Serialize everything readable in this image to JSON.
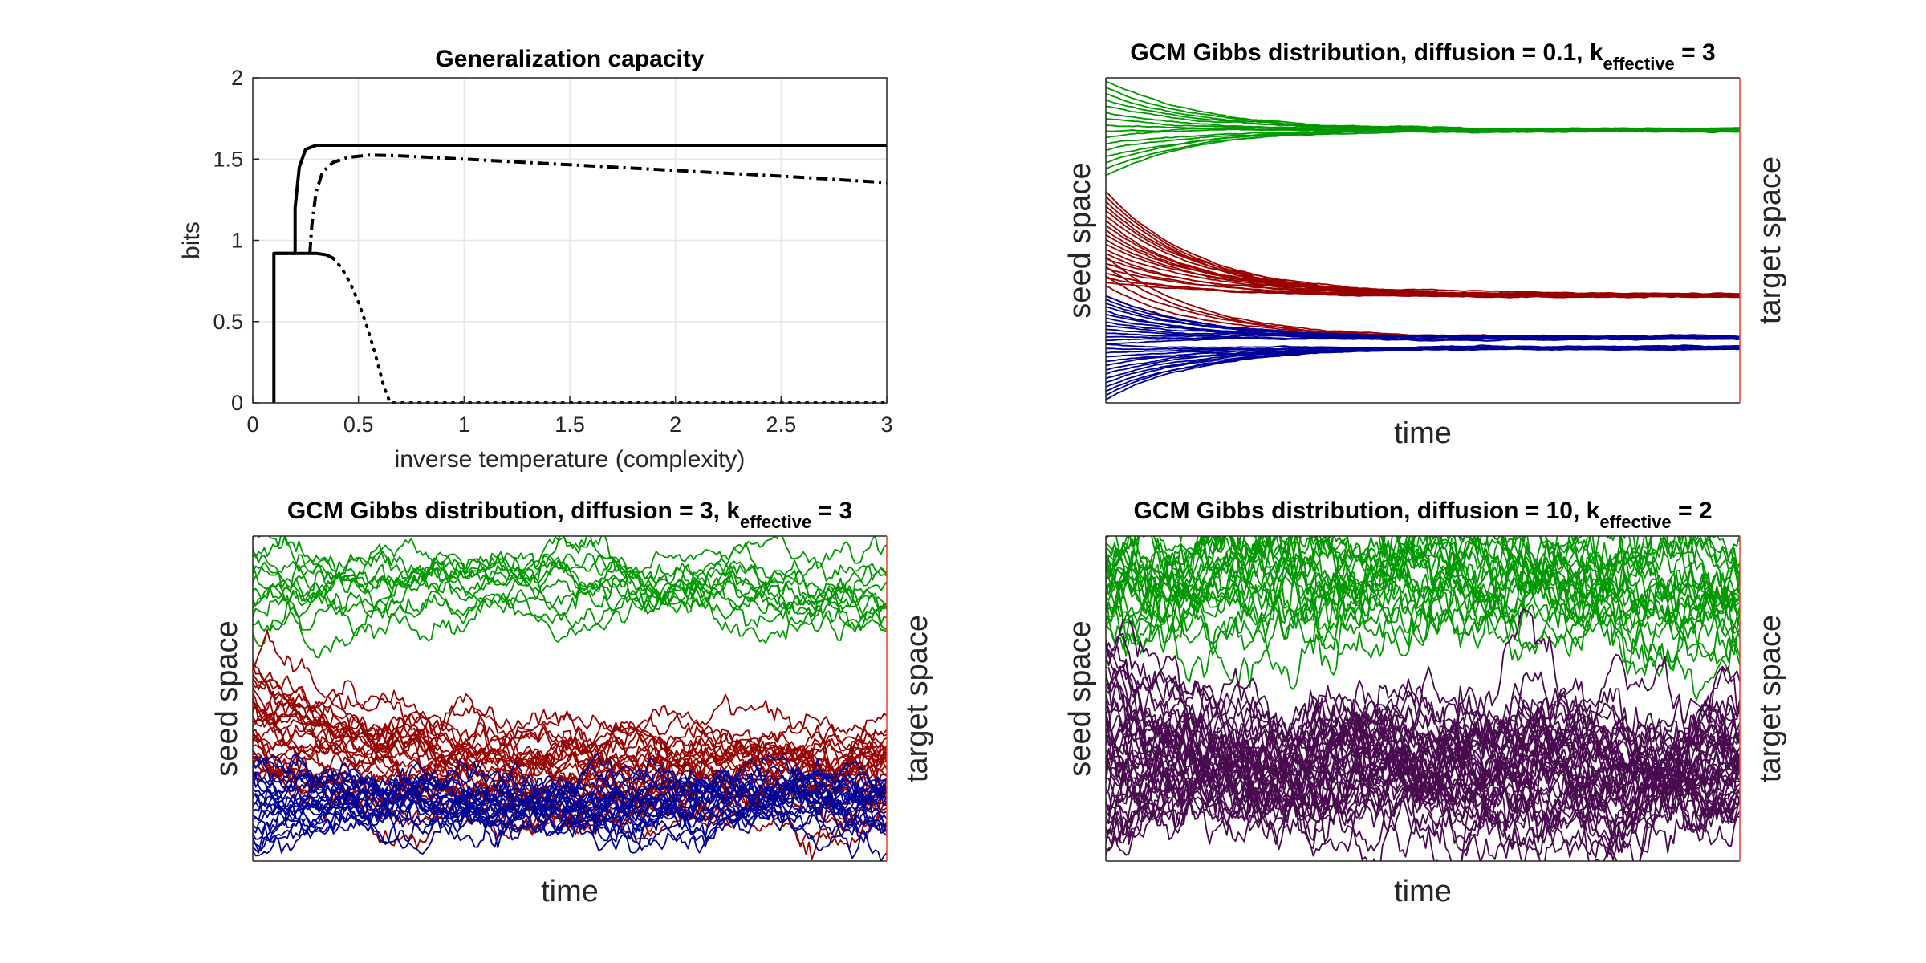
{
  "chart_data": [
    {
      "type": "line",
      "title": "Generalization capacity",
      "xlabel": "inverse temperature (complexity)",
      "ylabel": "bits",
      "xlim": [
        0,
        3
      ],
      "ylim": [
        0,
        2
      ],
      "xticks": [
        "0",
        "0.5",
        "1",
        "1.5",
        "2",
        "2.5",
        "3"
      ],
      "yticks": [
        "0",
        "0.5",
        "1",
        "1.5",
        "2"
      ],
      "grid": true,
      "series": [
        {
          "style": "solid",
          "x": [
            0.1,
            0.1,
            0.2,
            0.2,
            0.22,
            0.25,
            0.3,
            0.5,
            1,
            2,
            3
          ],
          "y": [
            0,
            0.92,
            0.92,
            1.2,
            1.45,
            1.56,
            1.585,
            1.585,
            1.585,
            1.585,
            1.585
          ]
        },
        {
          "style": "dashdot",
          "x": [
            0.27,
            0.28,
            0.3,
            0.33,
            0.38,
            0.45,
            0.55,
            0.7,
            1,
            1.5,
            2,
            2.5,
            3
          ],
          "y": [
            0.92,
            1.1,
            1.3,
            1.42,
            1.48,
            1.51,
            1.525,
            1.52,
            1.5,
            1.465,
            1.43,
            1.395,
            1.355
          ]
        },
        {
          "style": "solid",
          "x": [
            0.1,
            0.12,
            0.2,
            0.3,
            0.35,
            0.38
          ],
          "y": [
            0.92,
            0.92,
            0.92,
            0.92,
            0.91,
            0.89
          ]
        },
        {
          "style": "dotted",
          "x": [
            0.38,
            0.42,
            0.46,
            0.5,
            0.54,
            0.58,
            0.62,
            0.65,
            1,
            2,
            3
          ],
          "y": [
            0.89,
            0.83,
            0.74,
            0.62,
            0.47,
            0.3,
            0.1,
            0.0,
            0.0,
            0.0,
            0.0
          ]
        }
      ]
    },
    {
      "type": "line",
      "title_main": "GCM Gibbs distribution, diffusion = 0.1, k",
      "title_sub": "effective",
      "title_end": " = 3",
      "xlabel": "time",
      "ylabel": "seed space",
      "ylabel_right": "target space",
      "diffusion": 0.1,
      "k_effective": 3,
      "clusters": [
        {
          "color": "#009900",
          "n": 16,
          "target": 0.84,
          "start_range": [
            0.7,
            0.99
          ]
        },
        {
          "color": "#990000",
          "n": 20,
          "target": 0.33,
          "start_range": [
            0.37,
            0.65
          ]
        },
        {
          "color": "#990000",
          "n": 5,
          "target": 0.2,
          "start_range": [
            0.33,
            0.45
          ]
        },
        {
          "color": "#000099",
          "n": 14,
          "target": 0.2,
          "start_range": [
            0.18,
            0.33
          ]
        },
        {
          "color": "#000099",
          "n": 14,
          "target": 0.17,
          "start_range": [
            0.01,
            0.18
          ]
        }
      ]
    },
    {
      "type": "line",
      "title_main": "GCM Gibbs distribution, diffusion = 3, k",
      "title_sub": "effective",
      "title_end": " = 3",
      "xlabel": "time",
      "ylabel": "seed space",
      "ylabel_right": "target space",
      "diffusion": 3,
      "k_effective": 3,
      "clusters": [
        {
          "color": "#009900",
          "n": 12,
          "target": 0.84,
          "start_range": [
            0.7,
            0.99
          ]
        },
        {
          "color": "#990000",
          "n": 16,
          "target": 0.34,
          "start_range": [
            0.4,
            0.62
          ]
        },
        {
          "color": "#990000",
          "n": 14,
          "target": 0.2,
          "start_range": [
            0.25,
            0.4
          ]
        },
        {
          "color": "#000099",
          "n": 22,
          "target": 0.18,
          "start_range": [
            0.03,
            0.32
          ]
        }
      ]
    },
    {
      "type": "line",
      "title_main": "GCM Gibbs distribution, diffusion = 10, k",
      "title_sub": "effective",
      "title_end": " = 2",
      "xlabel": "time",
      "ylabel": "seed space",
      "ylabel_right": "target space",
      "diffusion": 10,
      "k_effective": 2,
      "clusters": [
        {
          "color": "#009900",
          "n": 24,
          "target": 0.85,
          "start_range": [
            0.72,
            0.99
          ]
        },
        {
          "color": "#4a0a50",
          "n": 40,
          "target": 0.28,
          "start_range": [
            0.02,
            0.68
          ]
        }
      ]
    }
  ]
}
